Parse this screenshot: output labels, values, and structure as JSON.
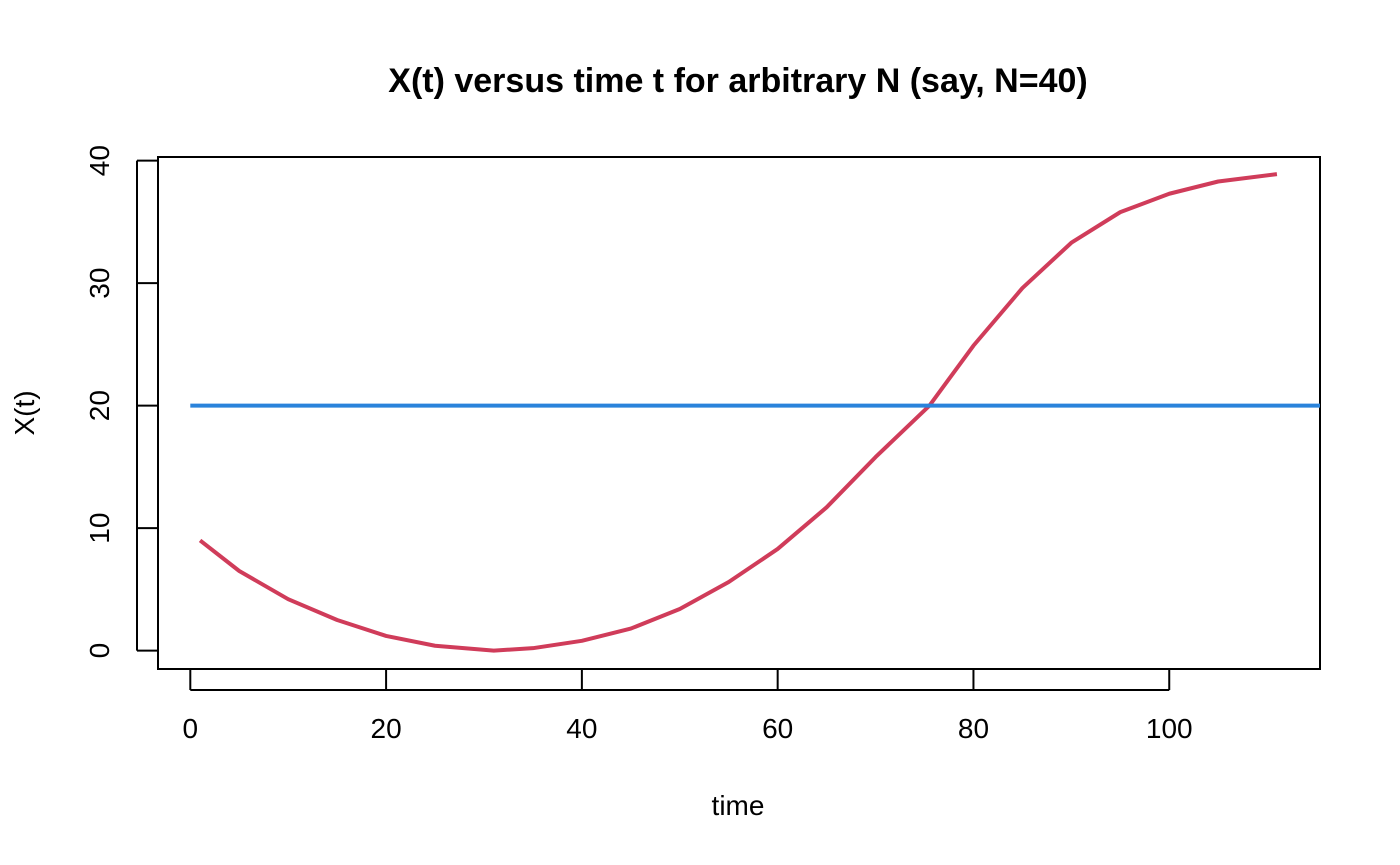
{
  "chart_data": {
    "type": "line",
    "title": "X(t) versus time t for arbitrary N (say, N=40)",
    "xlabel": "time",
    "ylabel": "X(t)",
    "xlim": [
      -3.3,
      115.4
    ],
    "ylim": [
      -1.5,
      40.3
    ],
    "x_ticks": [
      0,
      20,
      40,
      60,
      80,
      100
    ],
    "y_ticks": [
      0,
      10,
      20,
      30,
      40
    ],
    "grid": false,
    "series": [
      {
        "color": "#D03C5A",
        "x": [
          1,
          5,
          10,
          15,
          20,
          25,
          31,
          35,
          40,
          45,
          50,
          55,
          60,
          65,
          70,
          75.5,
          80,
          85,
          90,
          95,
          100,
          105,
          111
        ],
        "y": [
          9.0,
          6.5,
          4.2,
          2.5,
          1.2,
          0.4,
          0.0,
          0.2,
          0.8,
          1.8,
          3.4,
          5.6,
          8.3,
          11.7,
          15.8,
          20.0,
          24.9,
          29.6,
          33.3,
          35.8,
          37.3,
          38.3,
          38.9
        ]
      },
      {
        "color": "#2A83DB",
        "x": [
          0,
          115.4
        ],
        "y": [
          20,
          20
        ]
      }
    ]
  }
}
